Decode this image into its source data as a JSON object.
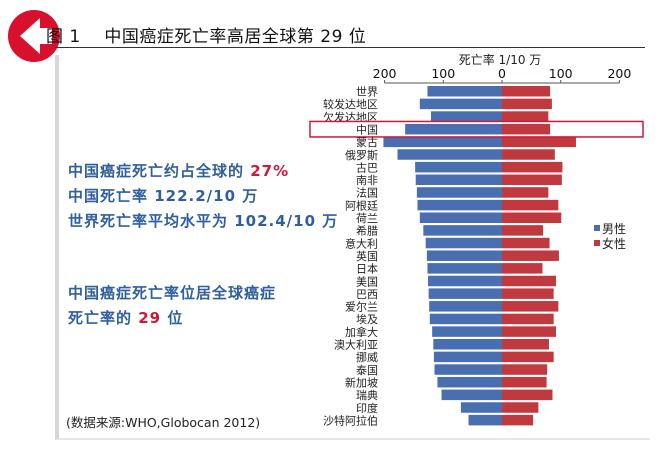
{
  "header": {
    "figure_label": "图 1",
    "title": "中国癌症死亡率高居全球第 29 位"
  },
  "notes": {
    "line1_prefix": "中国癌症死亡约占全球的 ",
    "line1_highlight": "27%",
    "line2": "中国死亡率 122.2/10 万",
    "line3": "世界死亡率平均水平为 102.4/10 万",
    "line4": "中国癌症死亡率位居全球癌症",
    "line5_prefix": "死亡率的 ",
    "line5_highlight": "29",
    "line5_suffix": " 位"
  },
  "source": "(数据来源:WHO,Globocan  2012)",
  "colors": {
    "male": "#4a6fb0",
    "female": "#c0393f",
    "highlight": "#d0183a",
    "note_text": "#2f5f9e"
  },
  "chart_data": {
    "type": "bar",
    "orientation": "horizontal-butterfly",
    "title": "死亡率 1/10 万",
    "tick_labels": [
      "200",
      "100",
      "0",
      "100",
      "200"
    ],
    "xlim_left": [
      0,
      200
    ],
    "xlim_right": [
      0,
      200
    ],
    "highlighted_category": "中国",
    "legend_position": "right",
    "categories": [
      "世界",
      "较发达地区",
      "欠发达地区",
      "中国",
      "蒙古",
      "俄罗斯",
      "古巴",
      "南非",
      "法国",
      "阿根廷",
      "荷兰",
      "希腊",
      "意大利",
      "英国",
      "日本",
      "美国",
      "巴西",
      "爱尔兰",
      "埃及",
      "加拿大",
      "澳大利亚",
      "挪威",
      "泰国",
      "新加坡",
      "瑞典",
      "印度",
      "沙特阿拉伯"
    ],
    "series": [
      {
        "name": "男性",
        "side": "left",
        "values": [
          127,
          140,
          121,
          165,
          202,
          178,
          148,
          147,
          145,
          144,
          140,
          134,
          130,
          128,
          127,
          126,
          125,
          124,
          123,
          119,
          117,
          116,
          115,
          110,
          103,
          70,
          57
        ]
      },
      {
        "name": "女性",
        "side": "right",
        "values": [
          82,
          85,
          79,
          82,
          126,
          90,
          103,
          102,
          79,
          96,
          101,
          70,
          81,
          97,
          69,
          92,
          88,
          96,
          88,
          92,
          80,
          88,
          77,
          76,
          86,
          62,
          53
        ]
      }
    ]
  }
}
